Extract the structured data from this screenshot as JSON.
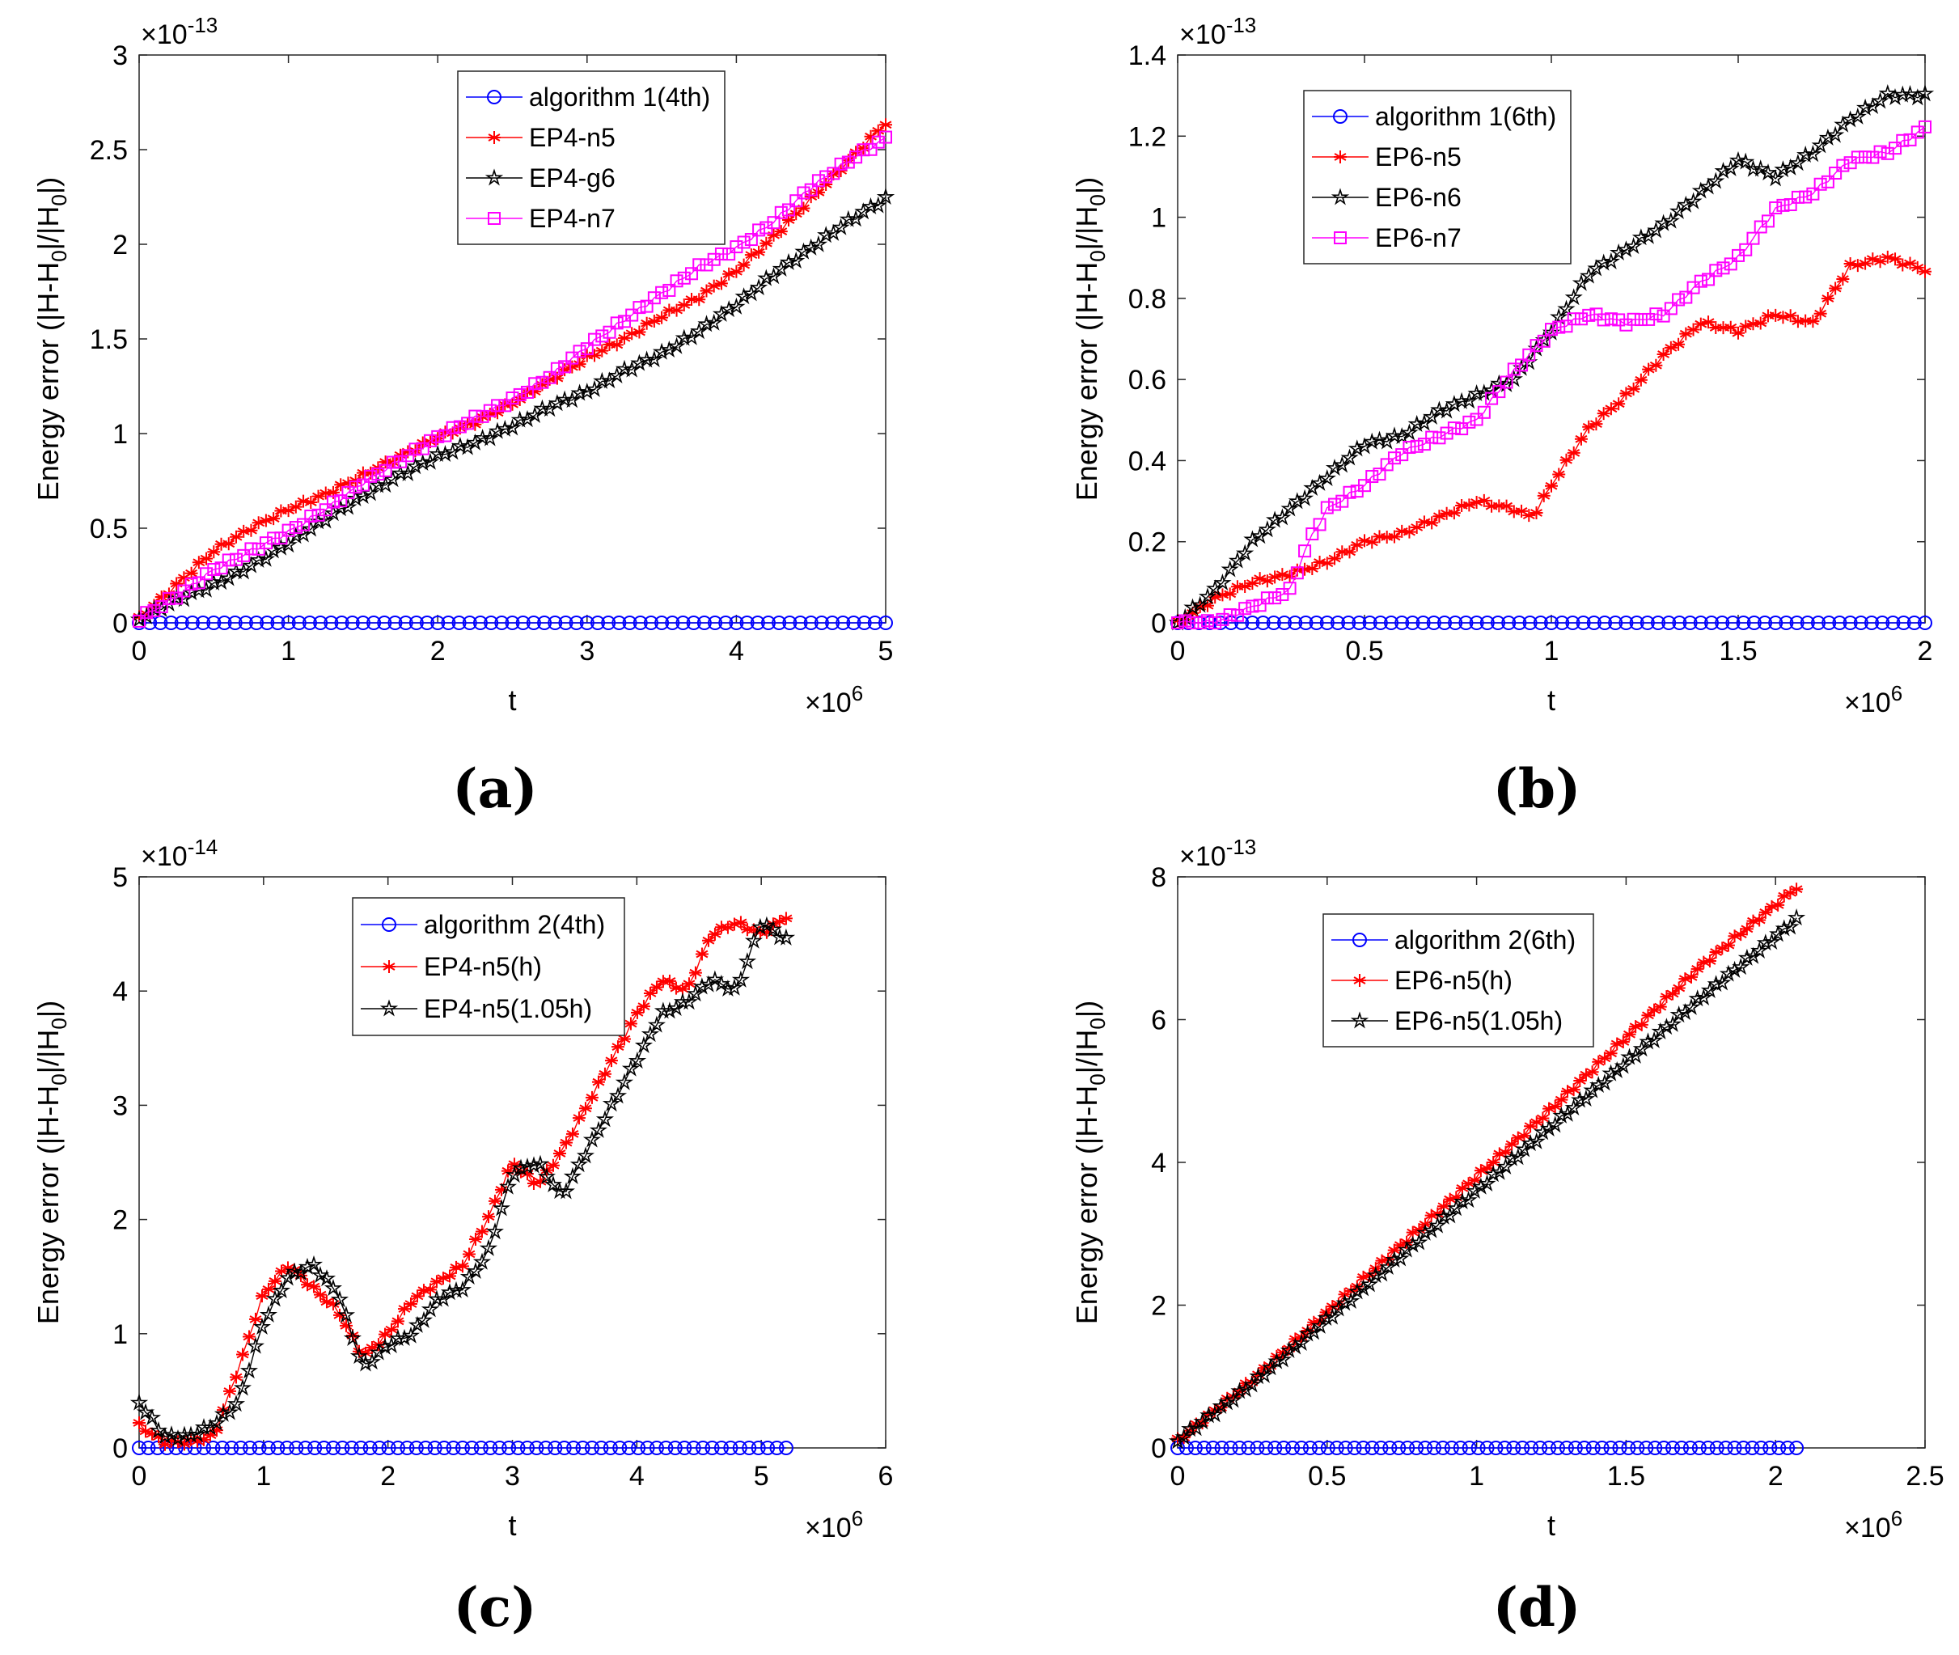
{
  "chart_data": [
    {
      "panel": "(a)",
      "type": "line",
      "xlabel": "t",
      "ylabel": "Energy error (|H-H",
      "ylabel_sub": "0",
      "ylabel_mid": "|/|H",
      "ylabel_sub2": "0",
      "ylabel_end": "|)",
      "x_exponent": "6",
      "y_exponent": "-13",
      "xlim": [
        0,
        5
      ],
      "ylim": [
        0,
        3
      ],
      "xticks": [
        0,
        1,
        2,
        3,
        4,
        5
      ],
      "xtick_labels": [
        "0",
        "1",
        "2",
        "3",
        "4",
        "5"
      ],
      "yticks": [
        0,
        0.5,
        1,
        1.5,
        2,
        2.5,
        3
      ],
      "ytick_labels": [
        "0",
        "0.5",
        "1",
        "1.5",
        "2",
        "2.5",
        "3"
      ],
      "legend_position": "top-center",
      "series": [
        {
          "name": "algorithm 1(4th)",
          "color": "#0000ff",
          "marker": "circle",
          "x": [
            0,
            5
          ],
          "values": [
            0.0,
            0.0
          ],
          "flat": true
        },
        {
          "name": "EP4-n5",
          "color": "#ff0000",
          "marker": "asterisk",
          "x": [
            0,
            0.25,
            0.5,
            0.75,
            1.0,
            1.25,
            1.5,
            1.75,
            2.0,
            2.25,
            2.5,
            2.75,
            3.0,
            3.25,
            3.5,
            3.75,
            4.0,
            4.25,
            4.5,
            4.75,
            5.0
          ],
          "values": [
            0.02,
            0.2,
            0.38,
            0.5,
            0.6,
            0.68,
            0.78,
            0.88,
            0.98,
            1.06,
            1.16,
            1.28,
            1.4,
            1.5,
            1.62,
            1.72,
            1.86,
            2.04,
            2.24,
            2.44,
            2.64
          ]
        },
        {
          "name": "EP4-g6",
          "color": "#000000",
          "marker": "star",
          "x": [
            0,
            0.25,
            0.5,
            0.75,
            1.0,
            1.25,
            1.5,
            1.75,
            2.0,
            2.25,
            2.5,
            2.75,
            3.0,
            3.25,
            3.5,
            3.75,
            4.0,
            4.25,
            4.5,
            4.75,
            5.0
          ],
          "values": [
            0.02,
            0.12,
            0.2,
            0.3,
            0.42,
            0.55,
            0.67,
            0.78,
            0.88,
            0.95,
            1.04,
            1.14,
            1.22,
            1.33,
            1.42,
            1.54,
            1.68,
            1.84,
            1.98,
            2.12,
            2.24
          ]
        },
        {
          "name": "EP4-n7",
          "color": "#ff00ff",
          "marker": "square",
          "x": [
            0,
            0.25,
            0.5,
            0.75,
            1.0,
            1.25,
            1.5,
            1.75,
            2.0,
            2.25,
            2.5,
            2.75,
            3.0,
            3.25,
            3.5,
            3.75,
            4.0,
            4.25,
            4.5,
            4.75,
            5.0
          ],
          "values": [
            0.02,
            0.14,
            0.28,
            0.38,
            0.48,
            0.6,
            0.74,
            0.86,
            0.98,
            1.08,
            1.18,
            1.3,
            1.46,
            1.6,
            1.74,
            1.88,
            1.98,
            2.12,
            2.3,
            2.44,
            2.56
          ]
        }
      ]
    },
    {
      "panel": "(b)",
      "type": "line",
      "xlabel": "t",
      "ylabel": "Energy error (|H-H",
      "ylabel_sub": "0",
      "ylabel_mid": "|/|H",
      "ylabel_sub2": "0",
      "ylabel_end": "|)",
      "x_exponent": "6",
      "y_exponent": "-13",
      "xlim": [
        0,
        2
      ],
      "ylim": [
        0,
        1.4
      ],
      "xticks": [
        0,
        0.5,
        1,
        1.5,
        2
      ],
      "xtick_labels": [
        "0",
        "0.5",
        "1",
        "1.5",
        "2"
      ],
      "yticks": [
        0,
        0.2,
        0.4,
        0.6,
        0.8,
        1,
        1.2,
        1.4
      ],
      "ytick_labels": [
        "0",
        "0.2",
        "0.4",
        "0.6",
        "0.8",
        "1",
        "1.2",
        "1.4"
      ],
      "legend_position": "top-left",
      "series": [
        {
          "name": "algorithm 1(6th)",
          "color": "#0000ff",
          "marker": "circle",
          "x": [
            0,
            2
          ],
          "values": [
            0.0,
            0.0
          ],
          "flat": true
        },
        {
          "name": "EP6-n5",
          "color": "#ff0000",
          "marker": "asterisk",
          "x": [
            0,
            0.1,
            0.2,
            0.3,
            0.4,
            0.5,
            0.6,
            0.7,
            0.8,
            0.9,
            0.95,
            1.0,
            1.1,
            1.2,
            1.3,
            1.4,
            1.5,
            1.6,
            1.7,
            1.8,
            1.9,
            2.0
          ],
          "values": [
            0.0,
            0.06,
            0.1,
            0.12,
            0.15,
            0.2,
            0.22,
            0.26,
            0.3,
            0.28,
            0.26,
            0.34,
            0.48,
            0.56,
            0.66,
            0.74,
            0.72,
            0.76,
            0.74,
            0.88,
            0.9,
            0.87
          ]
        },
        {
          "name": "EP6-n6",
          "color": "#000000",
          "marker": "star",
          "x": [
            0,
            0.1,
            0.2,
            0.3,
            0.4,
            0.5,
            0.6,
            0.7,
            0.8,
            0.9,
            1.0,
            1.1,
            1.2,
            1.3,
            1.4,
            1.5,
            1.6,
            1.7,
            1.8,
            1.9,
            2.0
          ],
          "values": [
            0.0,
            0.08,
            0.2,
            0.28,
            0.36,
            0.44,
            0.46,
            0.52,
            0.56,
            0.6,
            0.72,
            0.86,
            0.92,
            0.98,
            1.06,
            1.14,
            1.1,
            1.16,
            1.24,
            1.3,
            1.3
          ]
        },
        {
          "name": "EP6-n7",
          "color": "#ff00ff",
          "marker": "square",
          "x": [
            0,
            0.1,
            0.2,
            0.3,
            0.35,
            0.4,
            0.5,
            0.6,
            0.7,
            0.8,
            0.9,
            1.0,
            1.1,
            1.2,
            1.3,
            1.4,
            1.5,
            1.6,
            1.7,
            1.8,
            1.9,
            2.0
          ],
          "values": [
            0.0,
            0.0,
            0.04,
            0.08,
            0.2,
            0.28,
            0.34,
            0.42,
            0.46,
            0.5,
            0.62,
            0.72,
            0.76,
            0.74,
            0.76,
            0.84,
            0.9,
            1.02,
            1.06,
            1.14,
            1.16,
            1.22
          ]
        }
      ]
    },
    {
      "panel": "(c)",
      "type": "line",
      "xlabel": "t",
      "ylabel": "Energy error (|H-H",
      "ylabel_sub": "0",
      "ylabel_mid": "|/|H",
      "ylabel_sub2": "0",
      "ylabel_end": "|)",
      "x_exponent": "6",
      "y_exponent": "-14",
      "xlim": [
        0,
        6
      ],
      "ylim": [
        0,
        5
      ],
      "xticks": [
        0,
        1,
        2,
        3,
        4,
        5,
        6
      ],
      "xtick_labels": [
        "0",
        "1",
        "2",
        "3",
        "4",
        "5",
        "6"
      ],
      "yticks": [
        0,
        1,
        2,
        3,
        4,
        5
      ],
      "ytick_labels": [
        "0",
        "1",
        "2",
        "3",
        "4",
        "5"
      ],
      "legend_position": "top-center",
      "series": [
        {
          "name": "algorithm 2(4th)",
          "color": "#0000ff",
          "marker": "circle",
          "x": [
            0,
            5.2
          ],
          "values": [
            0.0,
            0.0
          ],
          "flat": true
        },
        {
          "name": "EP4-n5(h)",
          "color": "#ff0000",
          "marker": "asterisk",
          "x": [
            0,
            0.2,
            0.4,
            0.6,
            0.8,
            1.0,
            1.2,
            1.4,
            1.6,
            1.8,
            2.0,
            2.2,
            2.4,
            2.6,
            2.8,
            3.0,
            3.2,
            3.4,
            3.6,
            3.8,
            4.0,
            4.2,
            4.4,
            4.6,
            4.8,
            5.0,
            5.2
          ],
          "values": [
            0.2,
            0.05,
            0.05,
            0.1,
            0.7,
            1.35,
            1.6,
            1.4,
            1.2,
            0.8,
            1.0,
            1.3,
            1.45,
            1.6,
            2.0,
            2.5,
            2.3,
            2.6,
            3.0,
            3.4,
            3.8,
            4.1,
            4.0,
            4.5,
            4.6,
            4.5,
            4.65
          ]
        },
        {
          "name": "EP4-n5(1.05h)",
          "color": "#000000",
          "marker": "star",
          "x": [
            0,
            0.2,
            0.4,
            0.6,
            0.8,
            1.0,
            1.2,
            1.4,
            1.6,
            1.8,
            2.0,
            2.2,
            2.4,
            2.6,
            2.8,
            3.0,
            3.2,
            3.4,
            3.6,
            3.8,
            4.0,
            4.2,
            4.4,
            4.6,
            4.8,
            5.0,
            5.2
          ],
          "values": [
            0.4,
            0.1,
            0.1,
            0.2,
            0.4,
            1.1,
            1.5,
            1.6,
            1.35,
            0.7,
            0.9,
            1.0,
            1.3,
            1.4,
            1.7,
            2.4,
            2.5,
            2.2,
            2.6,
            3.0,
            3.4,
            3.8,
            3.9,
            4.1,
            4.0,
            4.6,
            4.45
          ]
        }
      ]
    },
    {
      "panel": "(d)",
      "type": "line",
      "xlabel": "t",
      "ylabel": "Energy error (|H-H",
      "ylabel_sub": "0",
      "ylabel_mid": "|/|H",
      "ylabel_sub2": "0",
      "ylabel_end": "|)",
      "x_exponent": "6",
      "y_exponent": "-13",
      "xlim": [
        0,
        2.5
      ],
      "ylim": [
        0,
        8
      ],
      "xticks": [
        0,
        0.5,
        1,
        1.5,
        2,
        2.5
      ],
      "xtick_labels": [
        "0",
        "0.5",
        "1",
        "1.5",
        "2",
        "2.5"
      ],
      "yticks": [
        0,
        2,
        4,
        6,
        8
      ],
      "ytick_labels": [
        "0",
        "2",
        "4",
        "6",
        "8"
      ],
      "legend_position": "top-center",
      "series": [
        {
          "name": "algorithm 2(6th)",
          "color": "#0000ff",
          "marker": "circle",
          "x": [
            0,
            2.07
          ],
          "values": [
            0.0,
            0.0
          ],
          "flat": true
        },
        {
          "name": "EP6-n5(h)",
          "color": "#ff0000",
          "marker": "asterisk",
          "x": [
            0,
            0.25,
            0.5,
            0.75,
            1.0,
            1.25,
            1.5,
            1.75,
            2.07
          ],
          "values": [
            0.1,
            0.95,
            1.9,
            2.85,
            3.8,
            4.75,
            5.75,
            6.75,
            7.85
          ]
        },
        {
          "name": "EP6-n5(1.05h)",
          "color": "#000000",
          "marker": "star",
          "x": [
            0,
            0.25,
            0.5,
            0.75,
            1.0,
            1.25,
            1.5,
            1.75,
            2.07
          ],
          "values": [
            0.1,
            0.9,
            1.8,
            2.7,
            3.6,
            4.5,
            5.4,
            6.3,
            7.4
          ]
        }
      ]
    }
  ]
}
